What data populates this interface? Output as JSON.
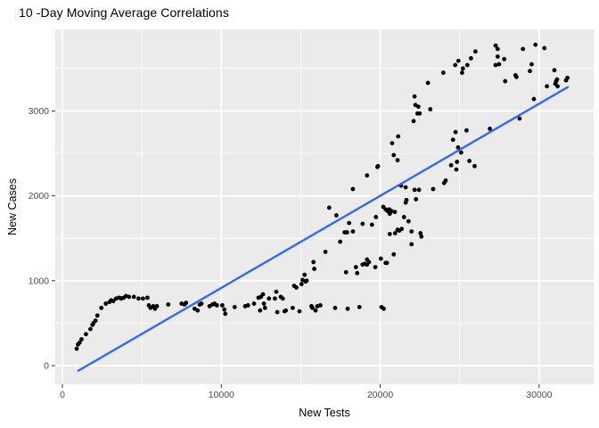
{
  "title": "10 -Day Moving Average Correlations",
  "colors": {
    "page_bg": "#FFFFFF",
    "panel_bg": "#EBEBEB",
    "grid_major": "#FFFFFF",
    "grid_minor": "#FFFFFF",
    "point": "#000000",
    "smooth_line": "#3366FF",
    "tick_mark": "#333333",
    "tick_label": "#4D4D4D",
    "axis_title": "#000000"
  },
  "chart_data": {
    "type": "scatter",
    "title": "10 -Day Moving Average Correlations",
    "xlabel": "New Tests",
    "ylabel": "New Cases",
    "xlim": [
      -450,
      33430
    ],
    "ylim": [
      -220,
      3960
    ],
    "x_major_ticks": [
      0,
      10000,
      20000,
      30000
    ],
    "x_tick_labels": [
      "0",
      "10000",
      "20000",
      "30000"
    ],
    "x_minor_ticks": [
      5000,
      15000,
      25000
    ],
    "y_major_ticks": [
      0,
      1000,
      2000,
      3000
    ],
    "y_tick_labels": [
      "0",
      "1000",
      "2000",
      "3000"
    ],
    "y_minor_ticks": [
      500,
      1500,
      2500,
      3500
    ],
    "grid": true,
    "legend": "none",
    "smooth_line": {
      "type": "linear",
      "x1": 1000,
      "y1": -60,
      "x2": 31800,
      "y2": 3280
    },
    "points": [
      [
        900,
        200
      ],
      [
        980,
        250
      ],
      [
        1080,
        270
      ],
      [
        1200,
        310
      ],
      [
        1480,
        370
      ],
      [
        1760,
        430
      ],
      [
        1890,
        480
      ],
      [
        1950,
        500
      ],
      [
        2080,
        530
      ],
      [
        2200,
        590
      ],
      [
        2450,
        680
      ],
      [
        2730,
        730
      ],
      [
        2960,
        750
      ],
      [
        3070,
        770
      ],
      [
        3200,
        760
      ],
      [
        3380,
        790
      ],
      [
        3570,
        800
      ],
      [
        3700,
        790
      ],
      [
        3850,
        800
      ],
      [
        4000,
        820
      ],
      [
        4190,
        810
      ],
      [
        4500,
        810
      ],
      [
        4790,
        790
      ],
      [
        5070,
        790
      ],
      [
        5350,
        800
      ],
      [
        5440,
        710
      ],
      [
        5540,
        680
      ],
      [
        5720,
        700
      ],
      [
        5820,
        670
      ],
      [
        5950,
        700
      ],
      [
        6660,
        720
      ],
      [
        7500,
        730
      ],
      [
        7680,
        720
      ],
      [
        7780,
        740
      ],
      [
        8320,
        670
      ],
      [
        8510,
        650
      ],
      [
        8640,
        720
      ],
      [
        8750,
        730
      ],
      [
        9260,
        700
      ],
      [
        9440,
        720
      ],
      [
        9570,
        730
      ],
      [
        9720,
        710
      ],
      [
        10060,
        710
      ],
      [
        10190,
        660
      ],
      [
        10250,
        610
      ],
      [
        10840,
        690
      ],
      [
        11500,
        700
      ],
      [
        11680,
        710
      ],
      [
        12060,
        730
      ],
      [
        12340,
        800
      ],
      [
        12490,
        810
      ],
      [
        12620,
        840
      ],
      [
        12680,
        730
      ],
      [
        12750,
        680
      ],
      [
        12440,
        650
      ],
      [
        13000,
        790
      ],
      [
        13370,
        790
      ],
      [
        13460,
        870
      ],
      [
        13520,
        630
      ],
      [
        13740,
        810
      ],
      [
        13870,
        790
      ],
      [
        13980,
        640
      ],
      [
        14060,
        650
      ],
      [
        14490,
        680
      ],
      [
        14580,
        940
      ],
      [
        14720,
        920
      ],
      [
        14920,
        640
      ],
      [
        15050,
        960
      ],
      [
        15110,
        1010
      ],
      [
        15300,
        990
      ],
      [
        15370,
        1000
      ],
      [
        15240,
        1070
      ],
      [
        15670,
        700
      ],
      [
        15730,
        680
      ],
      [
        15800,
        1220
      ],
      [
        15850,
        1140
      ],
      [
        15930,
        650
      ],
      [
        16040,
        700
      ],
      [
        16230,
        710
      ],
      [
        17160,
        680
      ],
      [
        17950,
        670
      ],
      [
        18690,
        690
      ],
      [
        20080,
        690
      ],
      [
        20220,
        670
      ],
      [
        16550,
        1340
      ],
      [
        17480,
        1460
      ],
      [
        17760,
        1570
      ],
      [
        17910,
        1570
      ],
      [
        18280,
        1580
      ],
      [
        18040,
        1680
      ],
      [
        16790,
        1860
      ],
      [
        17240,
        1770
      ],
      [
        18280,
        2080
      ],
      [
        19170,
        2240
      ],
      [
        19820,
        2340
      ],
      [
        18890,
        1670
      ],
      [
        19480,
        1660
      ],
      [
        17850,
        1100
      ],
      [
        18470,
        1160
      ],
      [
        18550,
        1090
      ],
      [
        18890,
        1190
      ],
      [
        19030,
        1200
      ],
      [
        19170,
        1190
      ],
      [
        19690,
        1160
      ],
      [
        20340,
        1210
      ],
      [
        20040,
        1260
      ],
      [
        19170,
        1250
      ],
      [
        19290,
        1220
      ],
      [
        20420,
        1210
      ],
      [
        20850,
        1310
      ],
      [
        19730,
        1750
      ],
      [
        20190,
        1870
      ],
      [
        20340,
        1840
      ],
      [
        20470,
        1820
      ],
      [
        20570,
        1840
      ],
      [
        20600,
        1790
      ],
      [
        20710,
        1820
      ],
      [
        20920,
        1810
      ],
      [
        21500,
        1750
      ],
      [
        21600,
        1920
      ],
      [
        21650,
        1950
      ],
      [
        21780,
        1700
      ],
      [
        22250,
        1960
      ],
      [
        20600,
        1550
      ],
      [
        20940,
        1560
      ],
      [
        21090,
        1600
      ],
      [
        21200,
        1590
      ],
      [
        21350,
        1610
      ],
      [
        21970,
        1580
      ],
      [
        22530,
        1560
      ],
      [
        22590,
        1520
      ],
      [
        21970,
        1430
      ],
      [
        21310,
        2120
      ],
      [
        21600,
        2100
      ],
      [
        22160,
        2070
      ],
      [
        22440,
        2070
      ],
      [
        23330,
        2080
      ],
      [
        24020,
        2150
      ],
      [
        24120,
        2180
      ],
      [
        19860,
        2350
      ],
      [
        20750,
        2620
      ],
      [
        20850,
        2480
      ],
      [
        21090,
        2420
      ],
      [
        21130,
        2700
      ],
      [
        22100,
        2880
      ],
      [
        22160,
        3170
      ],
      [
        22210,
        3070
      ],
      [
        22400,
        3050
      ],
      [
        22340,
        2970
      ],
      [
        22480,
        2970
      ],
      [
        23150,
        3020
      ],
      [
        23000,
        3330
      ],
      [
        23970,
        3450
      ],
      [
        24460,
        2360
      ],
      [
        24790,
        2310
      ],
      [
        24830,
        2400
      ],
      [
        25610,
        2410
      ],
      [
        25940,
        2350
      ],
      [
        24580,
        2660
      ],
      [
        24740,
        2750
      ],
      [
        25430,
        2770
      ],
      [
        24900,
        2570
      ],
      [
        25090,
        2510
      ],
      [
        26900,
        2790
      ],
      [
        28770,
        2910
      ],
      [
        29670,
        3140
      ],
      [
        24720,
        3540
      ],
      [
        24920,
        3590
      ],
      [
        25150,
        3450
      ],
      [
        25200,
        3500
      ],
      [
        25480,
        3540
      ],
      [
        25710,
        3620
      ],
      [
        25990,
        3700
      ],
      [
        27260,
        3770
      ],
      [
        27390,
        3730
      ],
      [
        27390,
        3640
      ],
      [
        27800,
        3610
      ],
      [
        27260,
        3540
      ],
      [
        27480,
        3550
      ],
      [
        27860,
        3350
      ],
      [
        28510,
        3420
      ],
      [
        28570,
        3400
      ],
      [
        28980,
        3730
      ],
      [
        29770,
        3780
      ],
      [
        30330,
        3740
      ],
      [
        29420,
        3470
      ],
      [
        29530,
        3550
      ],
      [
        30490,
        3290
      ],
      [
        30960,
        3480
      ],
      [
        31020,
        3320
      ],
      [
        31160,
        3290
      ],
      [
        31070,
        3350
      ],
      [
        31130,
        3370
      ],
      [
        31690,
        3360
      ],
      [
        31780,
        3390
      ]
    ]
  }
}
